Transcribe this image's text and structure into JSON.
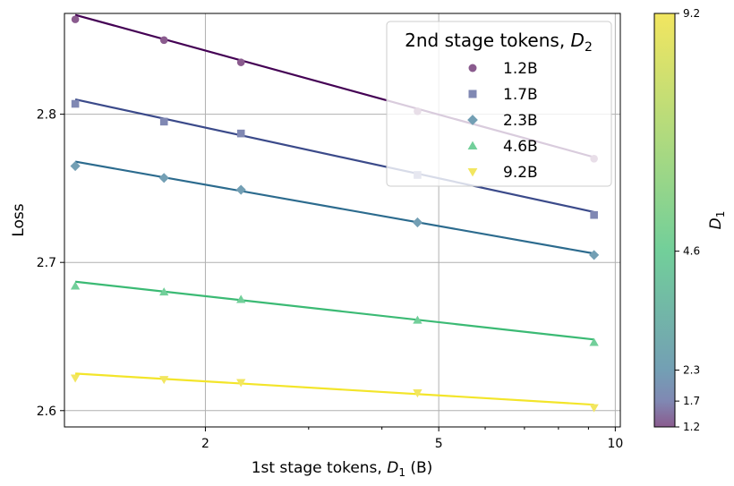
{
  "chart_data": {
    "type": "scatter",
    "xlabel_prefix": "1st stage tokens, ",
    "xlabel_var": "D",
    "xlabel_sub": "1",
    "xlabel_suffix": " (B)",
    "ylabel": "Loss",
    "x_scale": "log",
    "xlim": [
      1.15,
      10.2
    ],
    "ylim": [
      2.589,
      2.868
    ],
    "x_ticks": [
      2,
      5,
      10
    ],
    "y_ticks": [
      2.6,
      2.7,
      2.8
    ],
    "grid": true,
    "x": [
      1.2,
      1.7,
      2.3,
      4.6,
      9.2
    ],
    "legend": {
      "title_prefix": "2nd stage tokens, ",
      "title_var": "D",
      "title_sub": "2",
      "placement": "top-right"
    },
    "series": [
      {
        "name": "1.2B",
        "marker": "circle",
        "color": "#440154",
        "point_color": "#8a5b8e",
        "values": [
          2.864,
          2.85,
          2.835,
          2.802,
          2.77
        ],
        "fit": [
          2.867,
          2.771
        ]
      },
      {
        "name": "1.7B",
        "marker": "square",
        "color": "#3b4a8a",
        "point_color": "#8088b3",
        "values": [
          2.807,
          2.795,
          2.787,
          2.759,
          2.732
        ],
        "fit": [
          2.81,
          2.734
        ]
      },
      {
        "name": "2.3B",
        "marker": "diamond",
        "color": "#2c6b8e",
        "point_color": "#739fb4",
        "values": [
          2.765,
          2.757,
          2.749,
          2.727,
          2.705
        ],
        "fit": [
          2.768,
          2.706
        ]
      },
      {
        "name": "4.6B",
        "marker": "triangle-up",
        "color": "#3bba74",
        "point_color": "#72cf9a",
        "values": [
          2.684,
          2.68,
          2.675,
          2.661,
          2.646
        ],
        "fit": [
          2.687,
          2.648
        ]
      },
      {
        "name": "9.2B",
        "marker": "triangle-down",
        "color": "#f3e52a",
        "point_color": "#f2e660",
        "values": [
          2.622,
          2.621,
          2.619,
          2.612,
          2.602
        ],
        "fit": [
          2.625,
          2.604
        ]
      }
    ],
    "colorbar": {
      "label_var": "D",
      "label_sub": "1",
      "min": 1.2,
      "max": 9.2,
      "ticks": [
        1.2,
        1.7,
        2.3,
        4.6,
        9.2
      ],
      "tick_labels": [
        "1.2",
        "1.7",
        "2.3",
        "4.6",
        "9.2"
      ],
      "colors": [
        "#8a5b8e",
        "#8088b3",
        "#739fb4",
        "#72cf9a",
        "#f2e660"
      ]
    }
  }
}
